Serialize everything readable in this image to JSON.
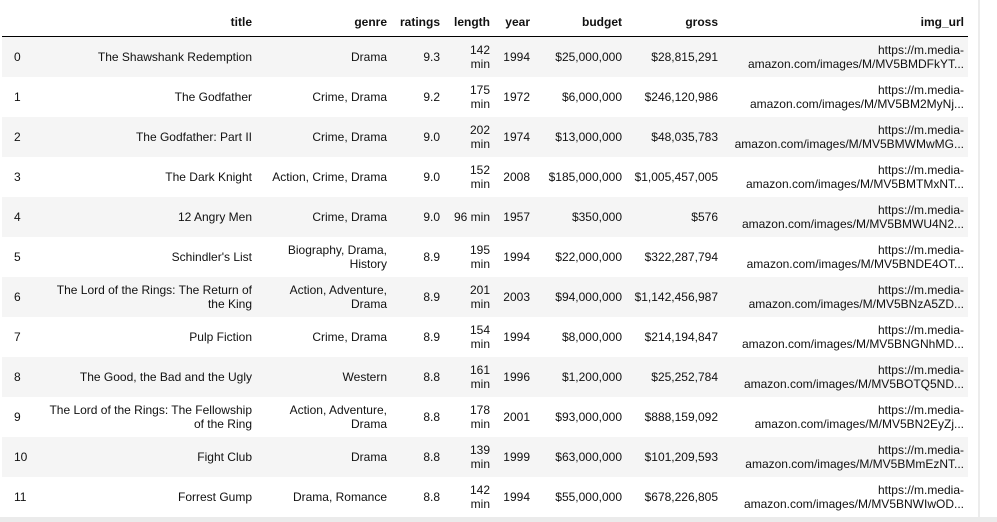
{
  "table": {
    "columns": [
      "title",
      "genre",
      "ratings",
      "length",
      "year",
      "budget",
      "gross",
      "img_url"
    ],
    "rows": [
      {
        "index": "0",
        "title": "The Shawshank Redemption",
        "genre": "Drama",
        "ratings": "9.3",
        "length": "142 min",
        "year": "1994",
        "budget": "$25,000,000",
        "gross": "$28,815,291",
        "img_url": "https://m.media-amazon.com/images/M/MV5BMDFkYT..."
      },
      {
        "index": "1",
        "title": "The Godfather",
        "genre": "Crime, Drama",
        "ratings": "9.2",
        "length": "175 min",
        "year": "1972",
        "budget": "$6,000,000",
        "gross": "$246,120,986",
        "img_url": "https://m.media-amazon.com/images/M/MV5BM2MyNj..."
      },
      {
        "index": "2",
        "title": "The Godfather: Part II",
        "genre": "Crime, Drama",
        "ratings": "9.0",
        "length": "202 min",
        "year": "1974",
        "budget": "$13,000,000",
        "gross": "$48,035,783",
        "img_url": "https://m.media-amazon.com/images/M/MV5BMWMwMG..."
      },
      {
        "index": "3",
        "title": "The Dark Knight",
        "genre": "Action, Crime, Drama",
        "ratings": "9.0",
        "length": "152 min",
        "year": "2008",
        "budget": "$185,000,000",
        "gross": "$1,005,457,005",
        "img_url": "https://m.media-amazon.com/images/M/MV5BMTMxNT..."
      },
      {
        "index": "4",
        "title": "12 Angry Men",
        "genre": "Crime, Drama",
        "ratings": "9.0",
        "length": "96 min",
        "year": "1957",
        "budget": "$350,000",
        "gross": "$576",
        "img_url": "https://m.media-amazon.com/images/M/MV5BMWU4N2..."
      },
      {
        "index": "5",
        "title": "Schindler's List",
        "genre": "Biography, Drama, History",
        "ratings": "8.9",
        "length": "195 min",
        "year": "1994",
        "budget": "$22,000,000",
        "gross": "$322,287,794",
        "img_url": "https://m.media-amazon.com/images/M/MV5BNDE4OT..."
      },
      {
        "index": "6",
        "title": "The Lord of the Rings: The Return of the King",
        "genre": "Action, Adventure, Drama",
        "ratings": "8.9",
        "length": "201 min",
        "year": "2003",
        "budget": "$94,000,000",
        "gross": "$1,142,456,987",
        "img_url": "https://m.media-amazon.com/images/M/MV5BNzA5ZD..."
      },
      {
        "index": "7",
        "title": "Pulp Fiction",
        "genre": "Crime, Drama",
        "ratings": "8.9",
        "length": "154 min",
        "year": "1994",
        "budget": "$8,000,000",
        "gross": "$214,194,847",
        "img_url": "https://m.media-amazon.com/images/M/MV5BNGNhMD..."
      },
      {
        "index": "8",
        "title": "The Good, the Bad and the Ugly",
        "genre": "Western",
        "ratings": "8.8",
        "length": "161 min",
        "year": "1996",
        "budget": "$1,200,000",
        "gross": "$25,252,784",
        "img_url": "https://m.media-amazon.com/images/M/MV5BOTQ5ND..."
      },
      {
        "index": "9",
        "title": "The Lord of the Rings: The Fellowship of the Ring",
        "genre": "Action, Adventure, Drama",
        "ratings": "8.8",
        "length": "178 min",
        "year": "2001",
        "budget": "$93,000,000",
        "gross": "$888,159,092",
        "img_url": "https://m.media-amazon.com/images/M/MV5BN2EyZj..."
      },
      {
        "index": "10",
        "title": "Fight Club",
        "genre": "Drama",
        "ratings": "8.8",
        "length": "139 min",
        "year": "1999",
        "budget": "$63,000,000",
        "gross": "$101,209,593",
        "img_url": "https://m.media-amazon.com/images/M/MV5BMmEzNT..."
      },
      {
        "index": "11",
        "title": "Forrest Gump",
        "genre": "Drama, Romance",
        "ratings": "8.8",
        "length": "142 min",
        "year": "1994",
        "budget": "$55,000,000",
        "gross": "$678,226,805",
        "img_url": "https://m.media-amazon.com/images/M/MV5BNWIwOD..."
      }
    ]
  },
  "colors": {
    "stripe": "#f5f5f5",
    "header_rule": "#000000",
    "text": "#111111"
  }
}
